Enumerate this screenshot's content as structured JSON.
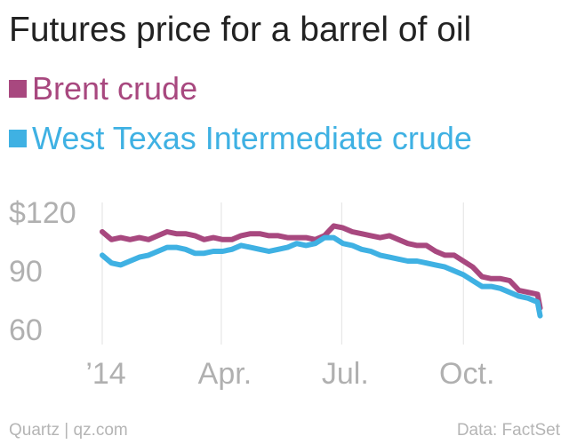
{
  "header": {
    "title": "Futures price for a barrel of oil"
  },
  "footer": {
    "source_left": "Quartz | qz.com",
    "source_right": "Data: FactSet"
  },
  "colors": {
    "brent": "#a8487f",
    "wti": "#3fb1e3",
    "gridline": "#e2e2e2",
    "tick_text": "#b0b0b0"
  },
  "chart_data": {
    "type": "line",
    "title": "Futures price for a barrel of oil",
    "xlabel": "",
    "ylabel": "",
    "y_ticks": [
      {
        "value": 120,
        "label": "$120"
      },
      {
        "value": 90,
        "label": "90"
      },
      {
        "value": 60,
        "label": "60"
      }
    ],
    "x_ticks": [
      {
        "value": "2014-01-01",
        "label": "’14"
      },
      {
        "value": "2014-04-01",
        "label": "Apr."
      },
      {
        "value": "2014-07-01",
        "label": "Jul."
      },
      {
        "value": "2014-10-01",
        "label": "Oct."
      }
    ],
    "xlim": [
      "2014-01-01",
      "2014-12-01"
    ],
    "ylim": [
      55,
      125
    ],
    "grid": "vertical",
    "legend": "top-left",
    "series": [
      {
        "name": "Brent crude",
        "color": "#a8487f",
        "x": [
          "2014-01-01",
          "2014-01-08",
          "2014-01-15",
          "2014-01-22",
          "2014-01-29",
          "2014-02-05",
          "2014-02-12",
          "2014-02-19",
          "2014-02-26",
          "2014-03-05",
          "2014-03-12",
          "2014-03-19",
          "2014-03-26",
          "2014-04-02",
          "2014-04-09",
          "2014-04-16",
          "2014-04-23",
          "2014-04-30",
          "2014-05-07",
          "2014-05-14",
          "2014-05-21",
          "2014-05-28",
          "2014-06-04",
          "2014-06-11",
          "2014-06-18",
          "2014-06-25",
          "2014-07-02",
          "2014-07-09",
          "2014-07-16",
          "2014-07-23",
          "2014-07-30",
          "2014-08-06",
          "2014-08-13",
          "2014-08-20",
          "2014-08-27",
          "2014-09-03",
          "2014-09-10",
          "2014-09-17",
          "2014-09-24",
          "2014-10-01",
          "2014-10-08",
          "2014-10-15",
          "2014-10-22",
          "2014-10-29",
          "2014-11-05",
          "2014-11-12",
          "2014-11-19",
          "2014-11-26",
          "2014-11-28"
        ],
        "values": [
          110,
          106,
          107,
          106,
          107,
          106,
          108,
          110,
          109,
          109,
          108,
          106,
          107,
          106,
          106,
          108,
          109,
          109,
          108,
          108,
          107,
          107,
          107,
          106,
          108,
          113,
          112,
          110,
          109,
          108,
          107,
          108,
          106,
          104,
          103,
          103,
          100,
          98,
          98,
          95,
          92,
          87,
          86,
          86,
          85,
          80,
          79,
          78,
          71
        ]
      },
      {
        "name": "West Texas Intermediate crude",
        "color": "#3fb1e3",
        "x": [
          "2014-01-01",
          "2014-01-08",
          "2014-01-15",
          "2014-01-22",
          "2014-01-29",
          "2014-02-05",
          "2014-02-12",
          "2014-02-19",
          "2014-02-26",
          "2014-03-05",
          "2014-03-12",
          "2014-03-19",
          "2014-03-26",
          "2014-04-02",
          "2014-04-09",
          "2014-04-16",
          "2014-04-23",
          "2014-04-30",
          "2014-05-07",
          "2014-05-14",
          "2014-05-21",
          "2014-05-28",
          "2014-06-04",
          "2014-06-11",
          "2014-06-18",
          "2014-06-25",
          "2014-07-02",
          "2014-07-09",
          "2014-07-16",
          "2014-07-23",
          "2014-07-30",
          "2014-08-06",
          "2014-08-13",
          "2014-08-20",
          "2014-08-27",
          "2014-09-03",
          "2014-09-10",
          "2014-09-17",
          "2014-09-24",
          "2014-10-01",
          "2014-10-08",
          "2014-10-15",
          "2014-10-22",
          "2014-10-29",
          "2014-11-05",
          "2014-11-12",
          "2014-11-19",
          "2014-11-26",
          "2014-11-28"
        ],
        "values": [
          98,
          94,
          93,
          95,
          97,
          98,
          100,
          102,
          102,
          101,
          99,
          99,
          100,
          100,
          101,
          103,
          102,
          101,
          100,
          101,
          102,
          104,
          103,
          104,
          107,
          107,
          104,
          103,
          101,
          100,
          98,
          97,
          96,
          95,
          95,
          94,
          93,
          92,
          90,
          88,
          85,
          82,
          82,
          81,
          79,
          77,
          76,
          74,
          67
        ]
      }
    ]
  }
}
